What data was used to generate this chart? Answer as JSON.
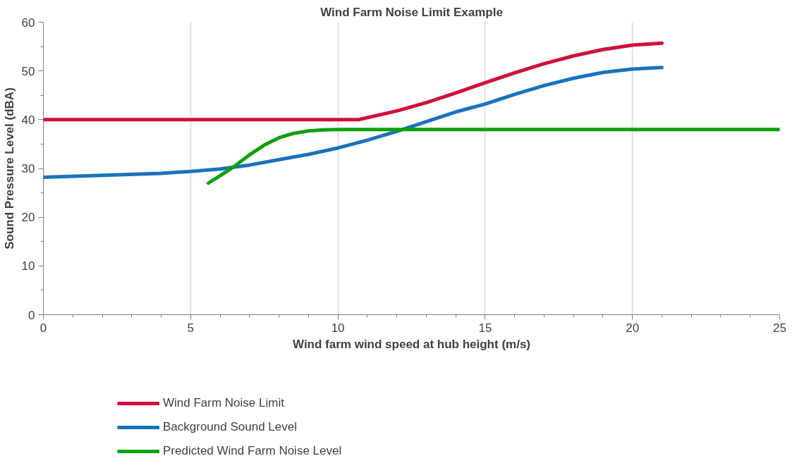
{
  "chart_data": {
    "type": "line",
    "title": "Wind Farm Noise Limit Example",
    "xlabel": "Wind farm wind speed at hub height (m/s)",
    "ylabel": "Sound Pressure Level (dBA)",
    "xlim": [
      0,
      25
    ],
    "ylim": [
      0,
      60
    ],
    "xticks": [
      0,
      5,
      10,
      15,
      20,
      25
    ],
    "yticks": [
      0,
      10,
      20,
      30,
      40,
      50,
      60
    ],
    "grid": "x",
    "legend": "bottom",
    "line_style": "solid",
    "marker": "none",
    "series": [
      {
        "name": "Wind Farm Noise Limit",
        "color": "#d0103a",
        "x": [
          0,
          2,
          4,
          6,
          8,
          10,
          10.7,
          12,
          13,
          14,
          15,
          16,
          17,
          18,
          19,
          20,
          21
        ],
        "values": [
          40,
          40,
          40,
          40,
          40,
          40,
          40,
          41.8,
          43.5,
          45.5,
          47.6,
          49.6,
          51.5,
          53.1,
          54.4,
          55.3,
          55.7
        ]
      },
      {
        "name": "Background Sound Level",
        "color": "#1a72bb",
        "x": [
          0,
          2,
          4,
          5,
          6,
          7,
          8,
          9,
          10,
          11,
          12,
          13,
          14,
          15,
          16,
          17,
          18,
          19,
          20,
          21
        ],
        "values": [
          28.2,
          28.6,
          29.0,
          29.4,
          29.9,
          30.7,
          31.8,
          32.9,
          34.2,
          35.8,
          37.6,
          39.6,
          41.6,
          43.2,
          45.2,
          47.0,
          48.5,
          49.7,
          50.4,
          50.7
        ]
      },
      {
        "name": "Predicted Wind Farm Noise Level",
        "color": "#10a010",
        "x": [
          5.6,
          6,
          6.5,
          7,
          7.5,
          8,
          8.5,
          9,
          9.5,
          10,
          25
        ],
        "values": [
          27.0,
          28.5,
          30.5,
          32.8,
          34.8,
          36.3,
          37.2,
          37.7,
          37.9,
          38,
          38
        ]
      }
    ]
  }
}
